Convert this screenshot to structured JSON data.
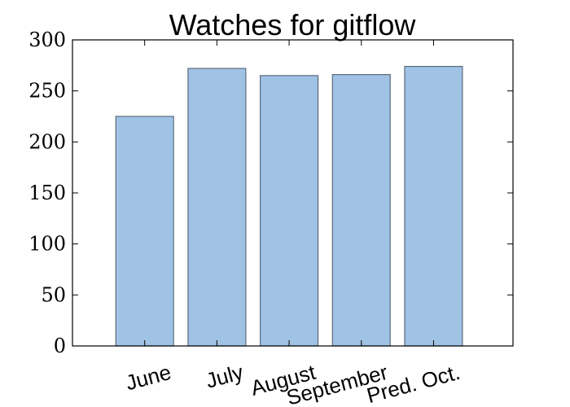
{
  "chart_data": {
    "type": "bar",
    "title": "Watches for gitflow",
    "categories": [
      "June",
      "July",
      "August",
      "September",
      "Pred. Oct."
    ],
    "values": [
      225,
      272,
      265,
      266,
      274
    ],
    "ylim": [
      0,
      300
    ],
    "yticks": [
      0,
      50,
      100,
      150,
      200,
      250,
      300
    ],
    "xlabel": "",
    "ylabel": "",
    "grid": false,
    "colors": {
      "bar_fill": "#a0c2e4",
      "bar_edge": "#5a6b7c"
    }
  }
}
